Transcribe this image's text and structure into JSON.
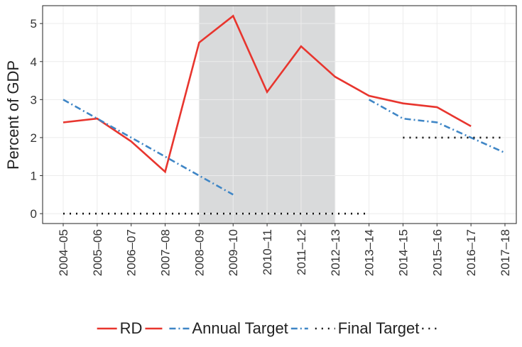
{
  "chart_data": {
    "type": "line",
    "y_label": "Percent of GDP",
    "categories": [
      "2004–05",
      "2005–06",
      "2006–07",
      "2007–08",
      "2008–09",
      "2009–10",
      "2010–11",
      "2011–12",
      "2012–13",
      "2013–14",
      "2014–15",
      "2015–16",
      "2016–17",
      "2017–18"
    ],
    "series": [
      {
        "name": "RD",
        "color": "#e8352e",
        "dash": "solid",
        "values": [
          2.4,
          2.5,
          1.9,
          1.1,
          4.5,
          5.2,
          3.2,
          4.4,
          3.6,
          3.1,
          2.9,
          2.8,
          2.3,
          null
        ]
      },
      {
        "name": "Annual Target",
        "color": "#3f86c6",
        "dash": "dashdot",
        "values": [
          3.0,
          2.5,
          2.0,
          1.5,
          1.0,
          0.5,
          null,
          null,
          null,
          3.0,
          2.5,
          2.4,
          2.0,
          1.6
        ]
      },
      {
        "name": "Final Target",
        "color": "#111111",
        "dash": "dotted",
        "segments": [
          {
            "from": "2004–05",
            "to": "2013–14",
            "value": 0
          },
          {
            "from": "2014–15",
            "to": "2017–18",
            "value": 2
          }
        ]
      }
    ],
    "shade": [
      "2008–09",
      "2012–13"
    ],
    "ylim": [
      -0.26,
      5.47
    ],
    "yticks": [
      0,
      1,
      2,
      3,
      4,
      5
    ],
    "grid": true,
    "legend": "bottom"
  }
}
